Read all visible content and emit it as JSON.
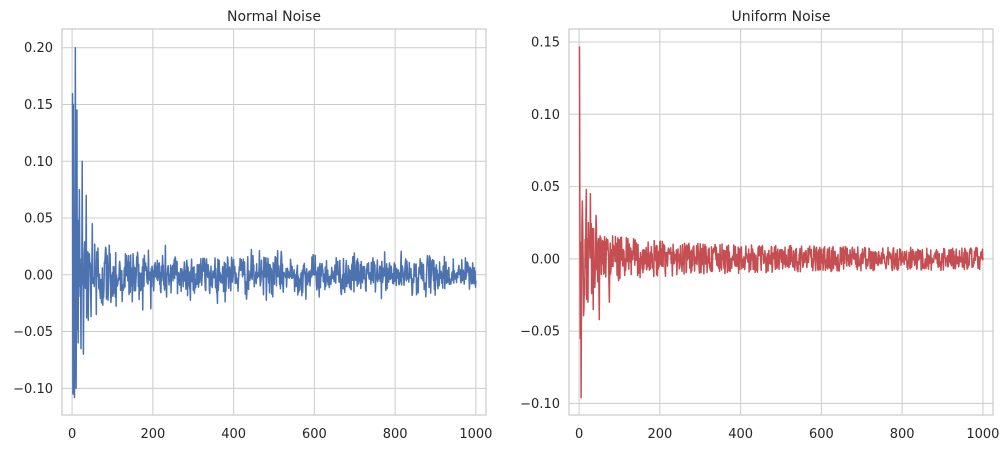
{
  "chart_data": [
    {
      "type": "line",
      "title": "Normal Noise",
      "xlabel": "",
      "ylabel": "",
      "xlim": [
        -25,
        1025
      ],
      "ylim": [
        -0.1235,
        0.2165
      ],
      "x_ticks": [
        0,
        200,
        400,
        600,
        800,
        1000
      ],
      "x_tick_labels": [
        "0",
        "200",
        "400",
        "600",
        "800",
        "1000"
      ],
      "y_ticks": [
        -0.1,
        -0.05,
        0.0,
        0.05,
        0.1,
        0.15,
        0.2
      ],
      "y_tick_labels": [
        "−0.10",
        "−0.05",
        "0.00",
        "0.05",
        "0.10",
        "0.15",
        "0.20"
      ],
      "grid": true,
      "color": "#4c72b0",
      "series": [
        {
          "points": 1000,
          "x_range": [
            1,
            1000
          ],
          "peak_max": {
            "x": 8,
            "y": 0.2
          },
          "peak_min": {
            "x": 6,
            "y": -0.108
          },
          "early_extremes": [
            {
              "x": 1,
              "y": 0.16
            },
            {
              "x": 2,
              "y": -0.105
            },
            {
              "x": 3,
              "y": 0.15
            },
            {
              "x": 5,
              "y": -0.1
            },
            {
              "x": 8,
              "y": 0.2
            },
            {
              "x": 10,
              "y": -0.1
            },
            {
              "x": 12,
              "y": 0.145
            },
            {
              "x": 15,
              "y": -0.06
            },
            {
              "x": 18,
              "y": 0.075
            },
            {
              "x": 22,
              "y": -0.065
            },
            {
              "x": 25,
              "y": 0.1
            },
            {
              "x": 28,
              "y": -0.07
            },
            {
              "x": 35,
              "y": 0.07
            },
            {
              "x": 40,
              "y": -0.04
            },
            {
              "x": 50,
              "y": 0.045
            },
            {
              "x": 60,
              "y": -0.035
            }
          ],
          "envelope_at_end": 0.012
        }
      ]
    },
    {
      "type": "line",
      "title": "Uniform Noise",
      "xlabel": "",
      "ylabel": "",
      "xlim": [
        -25,
        1025
      ],
      "ylim": [
        -0.108,
        0.159
      ],
      "x_ticks": [
        0,
        200,
        400,
        600,
        800,
        1000
      ],
      "x_tick_labels": [
        "0",
        "200",
        "400",
        "600",
        "800",
        "1000"
      ],
      "y_ticks": [
        -0.1,
        -0.05,
        0.0,
        0.05,
        0.1,
        0.15
      ],
      "y_tick_labels": [
        "−0.10",
        "−0.05",
        "0.00",
        "0.05",
        "0.10",
        "0.15"
      ],
      "grid": true,
      "color": "#c44e52",
      "series": [
        {
          "points": 1000,
          "x_range": [
            1,
            1000
          ],
          "peak_max": {
            "x": 1,
            "y": 0.147
          },
          "peak_min": {
            "x": 5,
            "y": -0.096
          },
          "early_extremes": [
            {
              "x": 1,
              "y": 0.147
            },
            {
              "x": 3,
              "y": -0.055
            },
            {
              "x": 5,
              "y": -0.096
            },
            {
              "x": 8,
              "y": 0.04
            },
            {
              "x": 12,
              "y": -0.035
            },
            {
              "x": 18,
              "y": 0.048
            },
            {
              "x": 22,
              "y": -0.03
            },
            {
              "x": 28,
              "y": 0.045
            },
            {
              "x": 35,
              "y": -0.035
            },
            {
              "x": 42,
              "y": 0.03
            },
            {
              "x": 50,
              "y": -0.042
            },
            {
              "x": 75,
              "y": -0.03
            }
          ],
          "envelope_at_end": 0.008
        }
      ]
    }
  ]
}
